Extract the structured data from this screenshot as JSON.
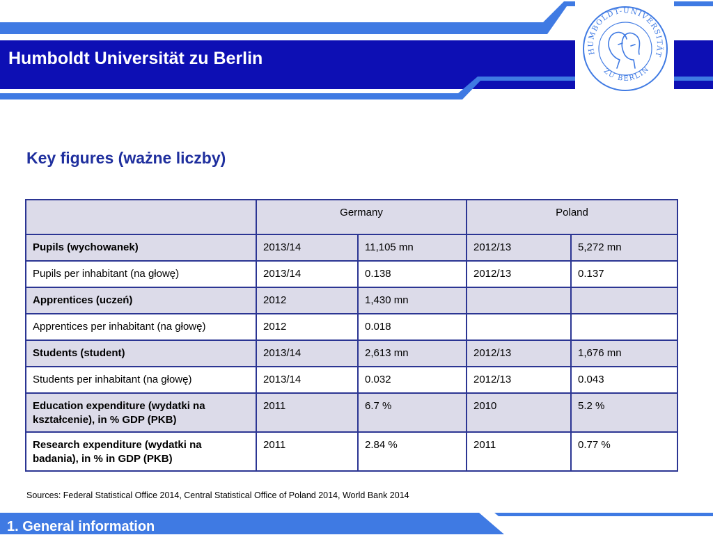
{
  "header": {
    "title": "Humboldt Universität zu Berlin",
    "seal_text_top": "HUMBOLDT-UNIVERSITÄT",
    "seal_text_bottom": "ZU BERLIN",
    "seal_icon": "university-seal-icon",
    "band_color": "#0d0fb4",
    "accent_color": "#3f7ae3"
  },
  "slide": {
    "heading": "Key figures (ważne liczby)",
    "heading_color": "#1f2f9e"
  },
  "table": {
    "header": {
      "blank": "",
      "germany": "Germany",
      "poland": "Poland"
    },
    "rows": [
      {
        "label": "Pupils (wychowanek)",
        "bold": true,
        "de_year": "2013/14",
        "de_value": "11,105 mn",
        "pl_year": "2012/13",
        "pl_value": "5,272 mn"
      },
      {
        "label": "Pupils per inhabitant (na głowę)",
        "bold": false,
        "de_year": "2013/14",
        "de_value": "0.138",
        "pl_year": "2012/13",
        "pl_value": "0.137"
      },
      {
        "label": "Apprentices (uczeń)",
        "bold": true,
        "de_year": "2012",
        "de_value": "1,430 mn",
        "pl_year": "",
        "pl_value": ""
      },
      {
        "label": "Apprentices per inhabitant (na głowę)",
        "bold": false,
        "de_year": "2012",
        "de_value": "0.018",
        "pl_year": "",
        "pl_value": ""
      },
      {
        "label": "Students (student)",
        "bold": true,
        "de_year": "2013/14",
        "de_value": "2,613 mn",
        "pl_year": "2012/13",
        "pl_value": "1,676 mn"
      },
      {
        "label": "Students per inhabitant (na głowę)",
        "bold": false,
        "de_year": "2013/14",
        "de_value": "0.032",
        "pl_year": "2012/13",
        "pl_value": "0.043"
      },
      {
        "label": "Education expenditure (wydatki na kształcenie), in % GDP (PKB)",
        "bold": true,
        "de_year": "2011",
        "de_value": "6.7 %",
        "pl_year": "2010",
        "pl_value": "5.2 %"
      },
      {
        "label": "Research expenditure (wydatki na badania), in % in GDP (PKB)",
        "bold": true,
        "de_year": "2011",
        "de_value": "2.84 %",
        "pl_year": "2011",
        "pl_value": "0.77 %"
      }
    ]
  },
  "sources": "Sources: Federal Statistical Office 2014, Central Statistical Office of Poland 2014, World Bank 2014",
  "footer": {
    "section": "1. General information"
  }
}
